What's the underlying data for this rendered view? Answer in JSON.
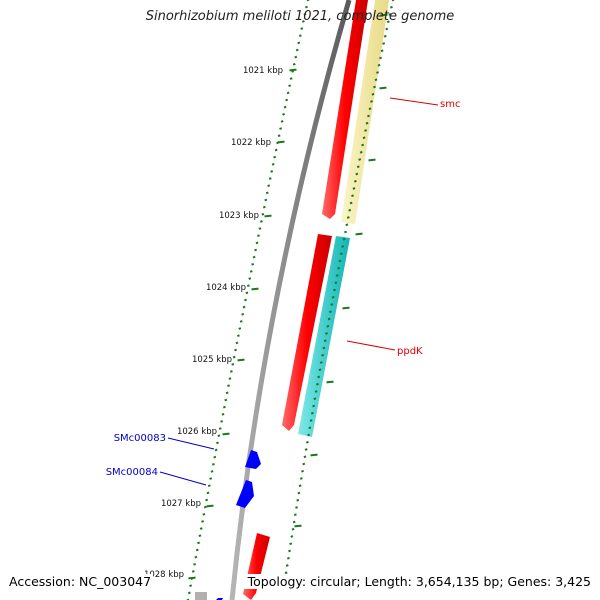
{
  "header": {
    "title": "Sinorhizobium meliloti 1021, complete genome"
  },
  "footer": {
    "accession": "Accession: NC_003047",
    "topology": "Topology: circular; Length: 3,654,135 bp; Genes: 3,425"
  },
  "ruler": {
    "ticks": [
      "1021 kbp",
      "1022 kbp",
      "1023 kbp",
      "1024 kbp",
      "1025 kbp",
      "1026 kbp",
      "1027 kbp",
      "1028 kbp"
    ]
  },
  "features": {
    "forward_labels": [
      "smc",
      "ppdK"
    ],
    "reverse_labels": [
      "SMc00083",
      "SMc00084"
    ]
  },
  "colors": {
    "forward_gene": "#ff0000",
    "reverse_gene": "#0000ff",
    "smc_track": "#f0e59a",
    "ppdk_track": "#1fc8c8",
    "tick_green": "#1a7a1a",
    "backbone": "#7f7f7f",
    "label_red": "#dd0000",
    "label_blue": "#0000cc"
  }
}
